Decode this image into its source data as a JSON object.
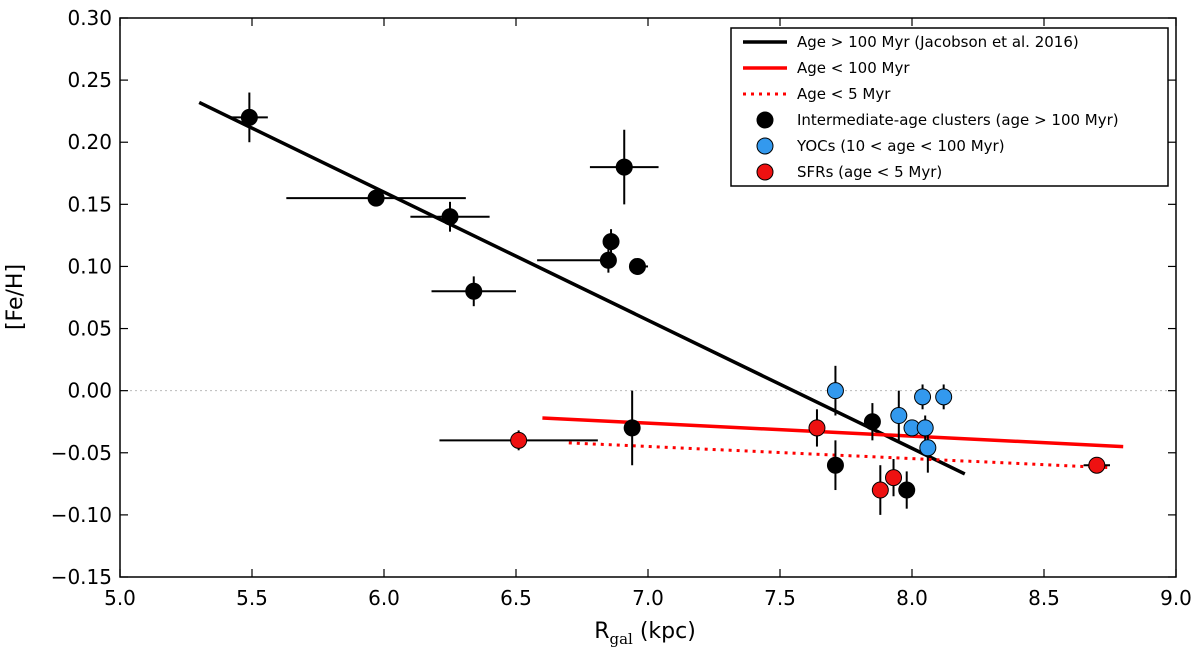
{
  "chart_data": {
    "type": "scatter",
    "title": "",
    "xlabel": "R",
    "xlabel_sub": "gal",
    "xlabel_unit": " (kpc)",
    "ylabel": "[Fe/H]",
    "xlim": [
      5.0,
      9.0
    ],
    "ylim": [
      -0.15,
      0.3
    ],
    "xticks": [
      5.0,
      5.5,
      6.0,
      6.5,
      7.0,
      7.5,
      8.0,
      8.5,
      9.0
    ],
    "xtick_labels": [
      "5.0",
      "5.5",
      "6.0",
      "6.5",
      "7.0",
      "7.5",
      "8.0",
      "8.5",
      "9.0"
    ],
    "yticks": [
      -0.15,
      -0.1,
      -0.05,
      0.0,
      0.05,
      0.1,
      0.15,
      0.2,
      0.25,
      0.3
    ],
    "ytick_labels": [
      "−0.15",
      "−0.10",
      "−0.05",
      "0.00",
      "0.05",
      "0.10",
      "0.15",
      "0.20",
      "0.25",
      "0.30"
    ],
    "zero_line": 0.0,
    "legend_position": "top-right",
    "lines": [
      {
        "name": "Age > 100 Myr (Jacobson et al. 2016)",
        "color": "#000000",
        "style": "solid",
        "x": [
          5.3,
          8.2
        ],
        "y": [
          0.232,
          -0.067
        ]
      },
      {
        "name": "Age < 100 Myr",
        "color": "#ff0000",
        "style": "solid",
        "x": [
          6.6,
          8.8
        ],
        "y": [
          -0.022,
          -0.045
        ]
      },
      {
        "name": "Age < 5 Myr",
        "color": "#ff0000",
        "style": "dotted",
        "x": [
          6.7,
          8.75
        ],
        "y": [
          -0.042,
          -0.062
        ]
      }
    ],
    "series": [
      {
        "name": "Intermediate-age clusters (age > 100 Myr)",
        "legend_parts": [
          "Intermediate-age clusters (age ",
          ">",
          " 100 Myr)"
        ],
        "color": "#000000",
        "points": [
          {
            "x": 5.49,
            "y": 0.22,
            "xerr": 0.07,
            "yerr": 0.02
          },
          {
            "x": 5.97,
            "y": 0.155,
            "xerr": [
              0.34,
              0.34
            ],
            "yerr": 0.0
          },
          {
            "x": 6.25,
            "y": 0.14,
            "xerr": 0.15,
            "yerr": 0.012
          },
          {
            "x": 6.34,
            "y": 0.08,
            "xerr": 0.16,
            "yerr": 0.012
          },
          {
            "x": 6.86,
            "y": 0.12,
            "xerr": 0.0,
            "yerr": 0.01
          },
          {
            "x": 6.85,
            "y": 0.105,
            "xerr": [
              0.27,
              0.0
            ],
            "yerr": 0.01
          },
          {
            "x": 6.96,
            "y": 0.1,
            "xerr": [
              0.0,
              0.04
            ],
            "yerr": 0.0
          },
          {
            "x": 6.91,
            "y": 0.18,
            "xerr": 0.13,
            "yerr": 0.03
          },
          {
            "x": 6.94,
            "y": -0.03,
            "xerr": 0.0,
            "yerr": 0.03
          },
          {
            "x": 7.71,
            "y": -0.06,
            "xerr": 0.0,
            "yerr": 0.02
          },
          {
            "x": 7.85,
            "y": -0.025,
            "xerr": 0.0,
            "yerr": 0.015
          },
          {
            "x": 7.98,
            "y": -0.08,
            "xerr": 0.0,
            "yerr": 0.015
          }
        ]
      },
      {
        "name": "YOCs (10 < age < 100 Myr)",
        "legend_parts": [
          "YOCs (10 ",
          "<",
          " age ",
          "<",
          " 100 Myr)"
        ],
        "color": "#3399ee",
        "points": [
          {
            "x": 7.71,
            "y": 0.0,
            "xerr": 0.0,
            "yerr": 0.02
          },
          {
            "x": 7.95,
            "y": -0.02,
            "xerr": 0.0,
            "yerr": 0.02
          },
          {
            "x": 8.0,
            "y": -0.03,
            "xerr": 0.0,
            "yerr": 0.0
          },
          {
            "x": 8.04,
            "y": -0.005,
            "xerr": 0.0,
            "yerr": 0.01
          },
          {
            "x": 8.05,
            "y": -0.03,
            "xerr": 0.0,
            "yerr": 0.01
          },
          {
            "x": 8.06,
            "y": -0.046,
            "xerr": 0.0,
            "yerr": 0.02
          },
          {
            "x": 8.12,
            "y": -0.005,
            "xerr": 0.0,
            "yerr": 0.01
          }
        ]
      },
      {
        "name": "SFRs (age < 5 Myr)",
        "legend_parts": [
          "SFRs (age ",
          "<",
          " 5 Myr)"
        ],
        "color": "#ee1111",
        "points": [
          {
            "x": 6.51,
            "y": -0.04,
            "xerr": [
              0.3,
              0.3
            ],
            "yerr": 0.008
          },
          {
            "x": 7.64,
            "y": -0.03,
            "xerr": 0.0,
            "yerr": 0.015
          },
          {
            "x": 7.88,
            "y": -0.08,
            "xerr": 0.0,
            "yerr": 0.02
          },
          {
            "x": 7.93,
            "y": -0.07,
            "xerr": 0.0,
            "yerr": 0.015
          },
          {
            "x": 8.7,
            "y": -0.06,
            "xerr": 0.05,
            "yerr": 0.005
          }
        ]
      }
    ]
  }
}
